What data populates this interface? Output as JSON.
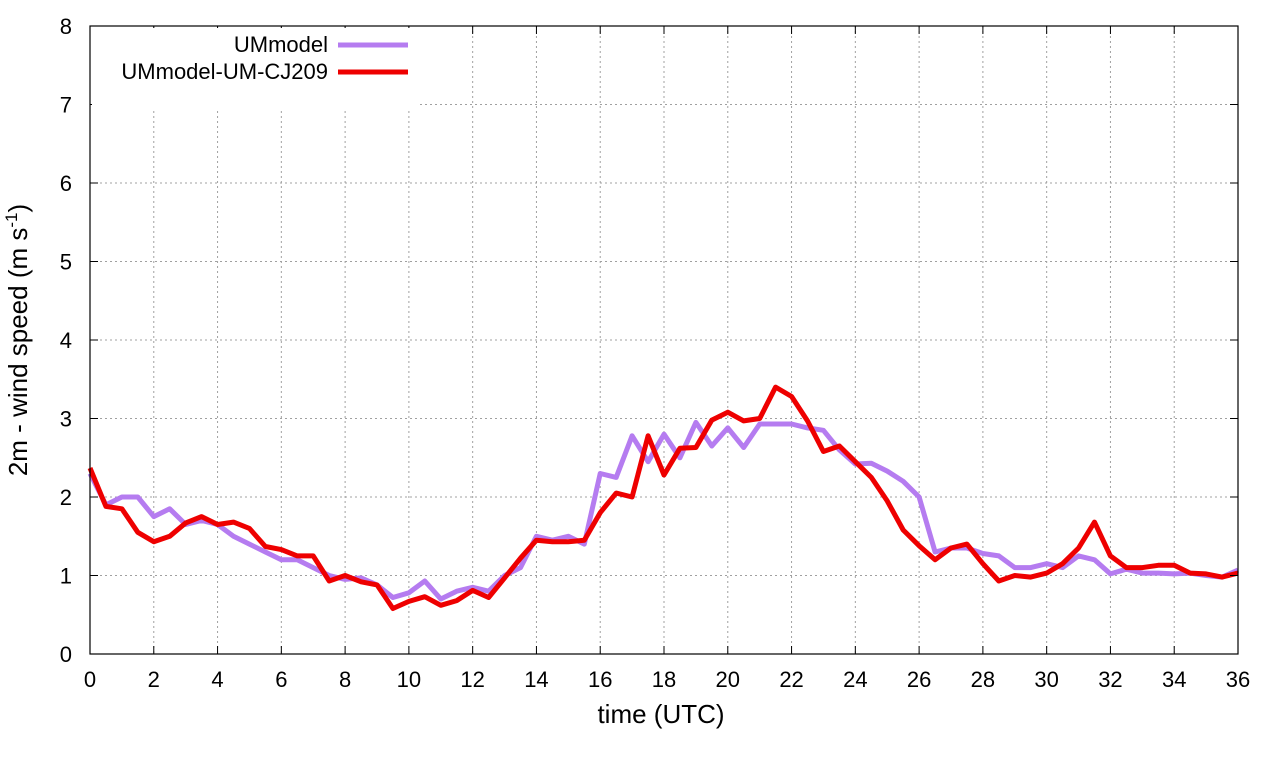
{
  "chart_data": {
    "type": "line",
    "xlabel": "time (UTC)",
    "ylabel_main": "2m - wind speed  (m s",
    "ylabel_sup": "-1",
    "ylabel_close": ")",
    "xlim": [
      0,
      36
    ],
    "ylim": [
      0,
      8
    ],
    "xticks": [
      "0",
      "2",
      "4",
      "6",
      "8",
      "10",
      "12",
      "14",
      "16",
      "18",
      "20",
      "22",
      "24",
      "26",
      "28",
      "30",
      "32",
      "34",
      "36"
    ],
    "yticks": [
      "0",
      "1",
      "2",
      "3",
      "4",
      "5",
      "6",
      "7",
      "8"
    ],
    "grid": true,
    "legend_position": "top-left",
    "x": [
      0,
      0.5,
      1,
      1.5,
      2,
      2.5,
      3,
      3.5,
      4,
      4.5,
      5,
      5.5,
      6,
      6.5,
      7,
      7.5,
      8,
      8.5,
      9,
      9.5,
      10,
      10.5,
      11,
      11.5,
      12,
      12.5,
      13,
      13.5,
      14,
      14.5,
      15,
      15.5,
      16,
      16.5,
      17,
      17.5,
      18,
      18.5,
      19,
      19.5,
      20,
      20.5,
      21,
      21.5,
      22,
      22.5,
      23,
      23.5,
      24,
      24.5,
      25,
      25.5,
      26,
      26.5,
      27,
      27.5,
      28,
      28.5,
      29,
      29.5,
      30,
      30.5,
      31,
      31.5,
      32,
      32.5,
      33,
      33.5,
      34,
      34.5,
      35,
      35.5,
      36
    ],
    "series": [
      {
        "name": "UMmodel",
        "color": "#b57cf0",
        "values": [
          2.3,
          1.9,
          2.0,
          2.0,
          1.75,
          1.85,
          1.65,
          1.7,
          1.65,
          1.5,
          1.4,
          1.3,
          1.2,
          1.2,
          1.1,
          1.0,
          0.95,
          0.97,
          0.88,
          0.72,
          0.78,
          0.93,
          0.7,
          0.8,
          0.85,
          0.8,
          1.0,
          1.1,
          1.5,
          1.45,
          1.5,
          1.4,
          2.3,
          2.25,
          2.78,
          2.45,
          2.8,
          2.5,
          2.95,
          2.65,
          2.88,
          2.63,
          2.93,
          2.93,
          2.93,
          2.88,
          2.85,
          2.6,
          2.42,
          2.43,
          2.33,
          2.2,
          2.0,
          1.3,
          1.35,
          1.35,
          1.28,
          1.25,
          1.1,
          1.1,
          1.15,
          1.1,
          1.25,
          1.2,
          1.02,
          1.08,
          1.03,
          1.03,
          1.02,
          1.03,
          1.0,
          0.98,
          1.07
        ]
      },
      {
        "name": "UMmodel-UM-CJ209",
        "color": "#ee0000",
        "values": [
          2.37,
          1.88,
          1.85,
          1.55,
          1.43,
          1.5,
          1.67,
          1.75,
          1.65,
          1.68,
          1.6,
          1.37,
          1.33,
          1.25,
          1.25,
          0.93,
          1.0,
          0.92,
          0.88,
          0.58,
          0.67,
          0.73,
          0.62,
          0.68,
          0.81,
          0.72,
          0.97,
          1.22,
          1.45,
          1.43,
          1.43,
          1.45,
          1.8,
          2.05,
          2.0,
          2.78,
          2.28,
          2.62,
          2.63,
          2.98,
          3.08,
          2.97,
          3.0,
          3.4,
          3.28,
          2.97,
          2.58,
          2.65,
          2.45,
          2.25,
          1.95,
          1.58,
          1.38,
          1.2,
          1.35,
          1.4,
          1.15,
          0.93,
          1.0,
          0.98,
          1.03,
          1.15,
          1.35,
          1.68,
          1.25,
          1.1,
          1.1,
          1.13,
          1.13,
          1.03,
          1.02,
          0.98,
          1.03
        ]
      }
    ]
  }
}
